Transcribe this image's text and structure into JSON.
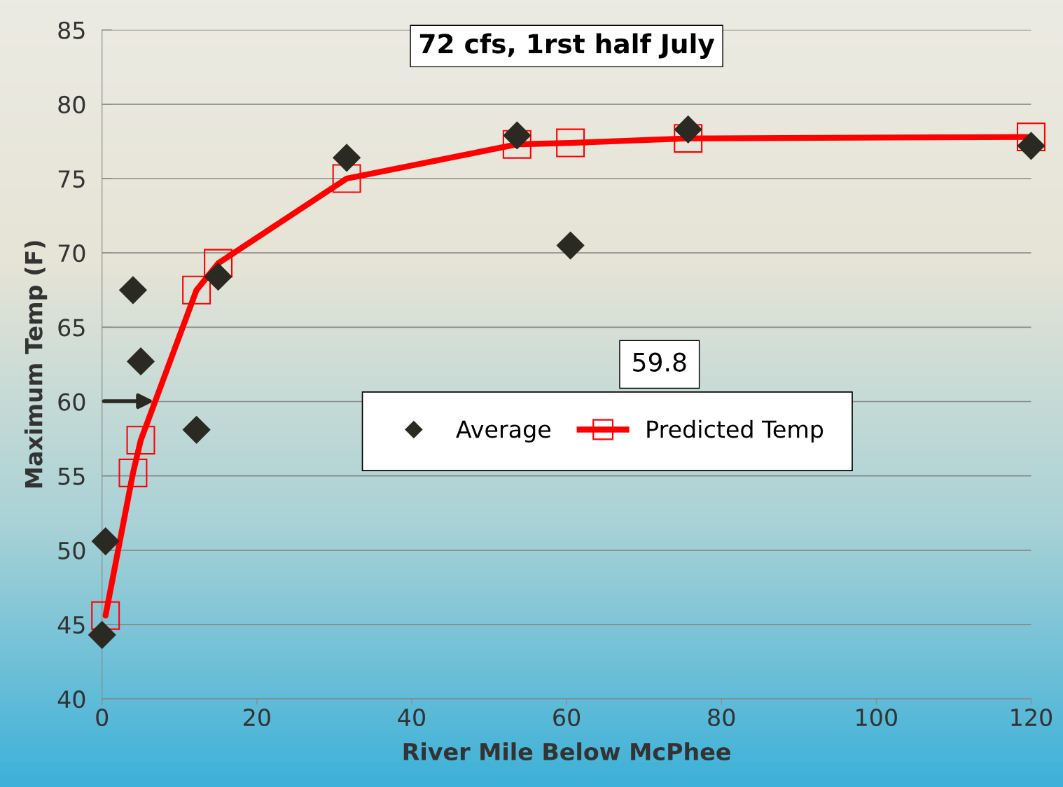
{
  "chart_data": {
    "type": "scatter",
    "title": "72 cfs, 1rst half July",
    "xlabel": "River Mile Below McPhee",
    "ylabel": "Maximum Temp (F)",
    "series": [
      {
        "name": "Average",
        "color": "#2b2a22",
        "marker": "diamond",
        "x": [
          0,
          0.45,
          4.0,
          5.0,
          12.2,
          15.0,
          31.6,
          53.6,
          60.5,
          75.7,
          120
        ],
        "values": [
          44.3,
          50.6,
          67.5,
          62.7,
          58.1,
          68.4,
          76.4,
          77.9,
          70.5,
          78.3,
          77.2
        ]
      },
      {
        "name": "Predicted Temp",
        "type": "line",
        "color": "#ff0000",
        "marker": "square",
        "x": [
          0.45,
          4.0,
          5.0,
          12.2,
          15.0,
          31.6,
          53.6,
          60.5,
          75.7,
          120
        ],
        "values": [
          45.6,
          55.2,
          57.4,
          67.5,
          69.3,
          75.0,
          77.3,
          77.4,
          77.7,
          77.8
        ]
      }
    ],
    "annotations": [
      "59.8"
    ],
    "xlim": [
      0,
      120
    ],
    "xticks": [
      0,
      20,
      40,
      60,
      80,
      100,
      120
    ],
    "ylim": [
      40,
      85
    ],
    "yticks": [
      40,
      45,
      50,
      55,
      60,
      65,
      70,
      75,
      80,
      85
    ],
    "grid": "y",
    "legend": "center right"
  }
}
